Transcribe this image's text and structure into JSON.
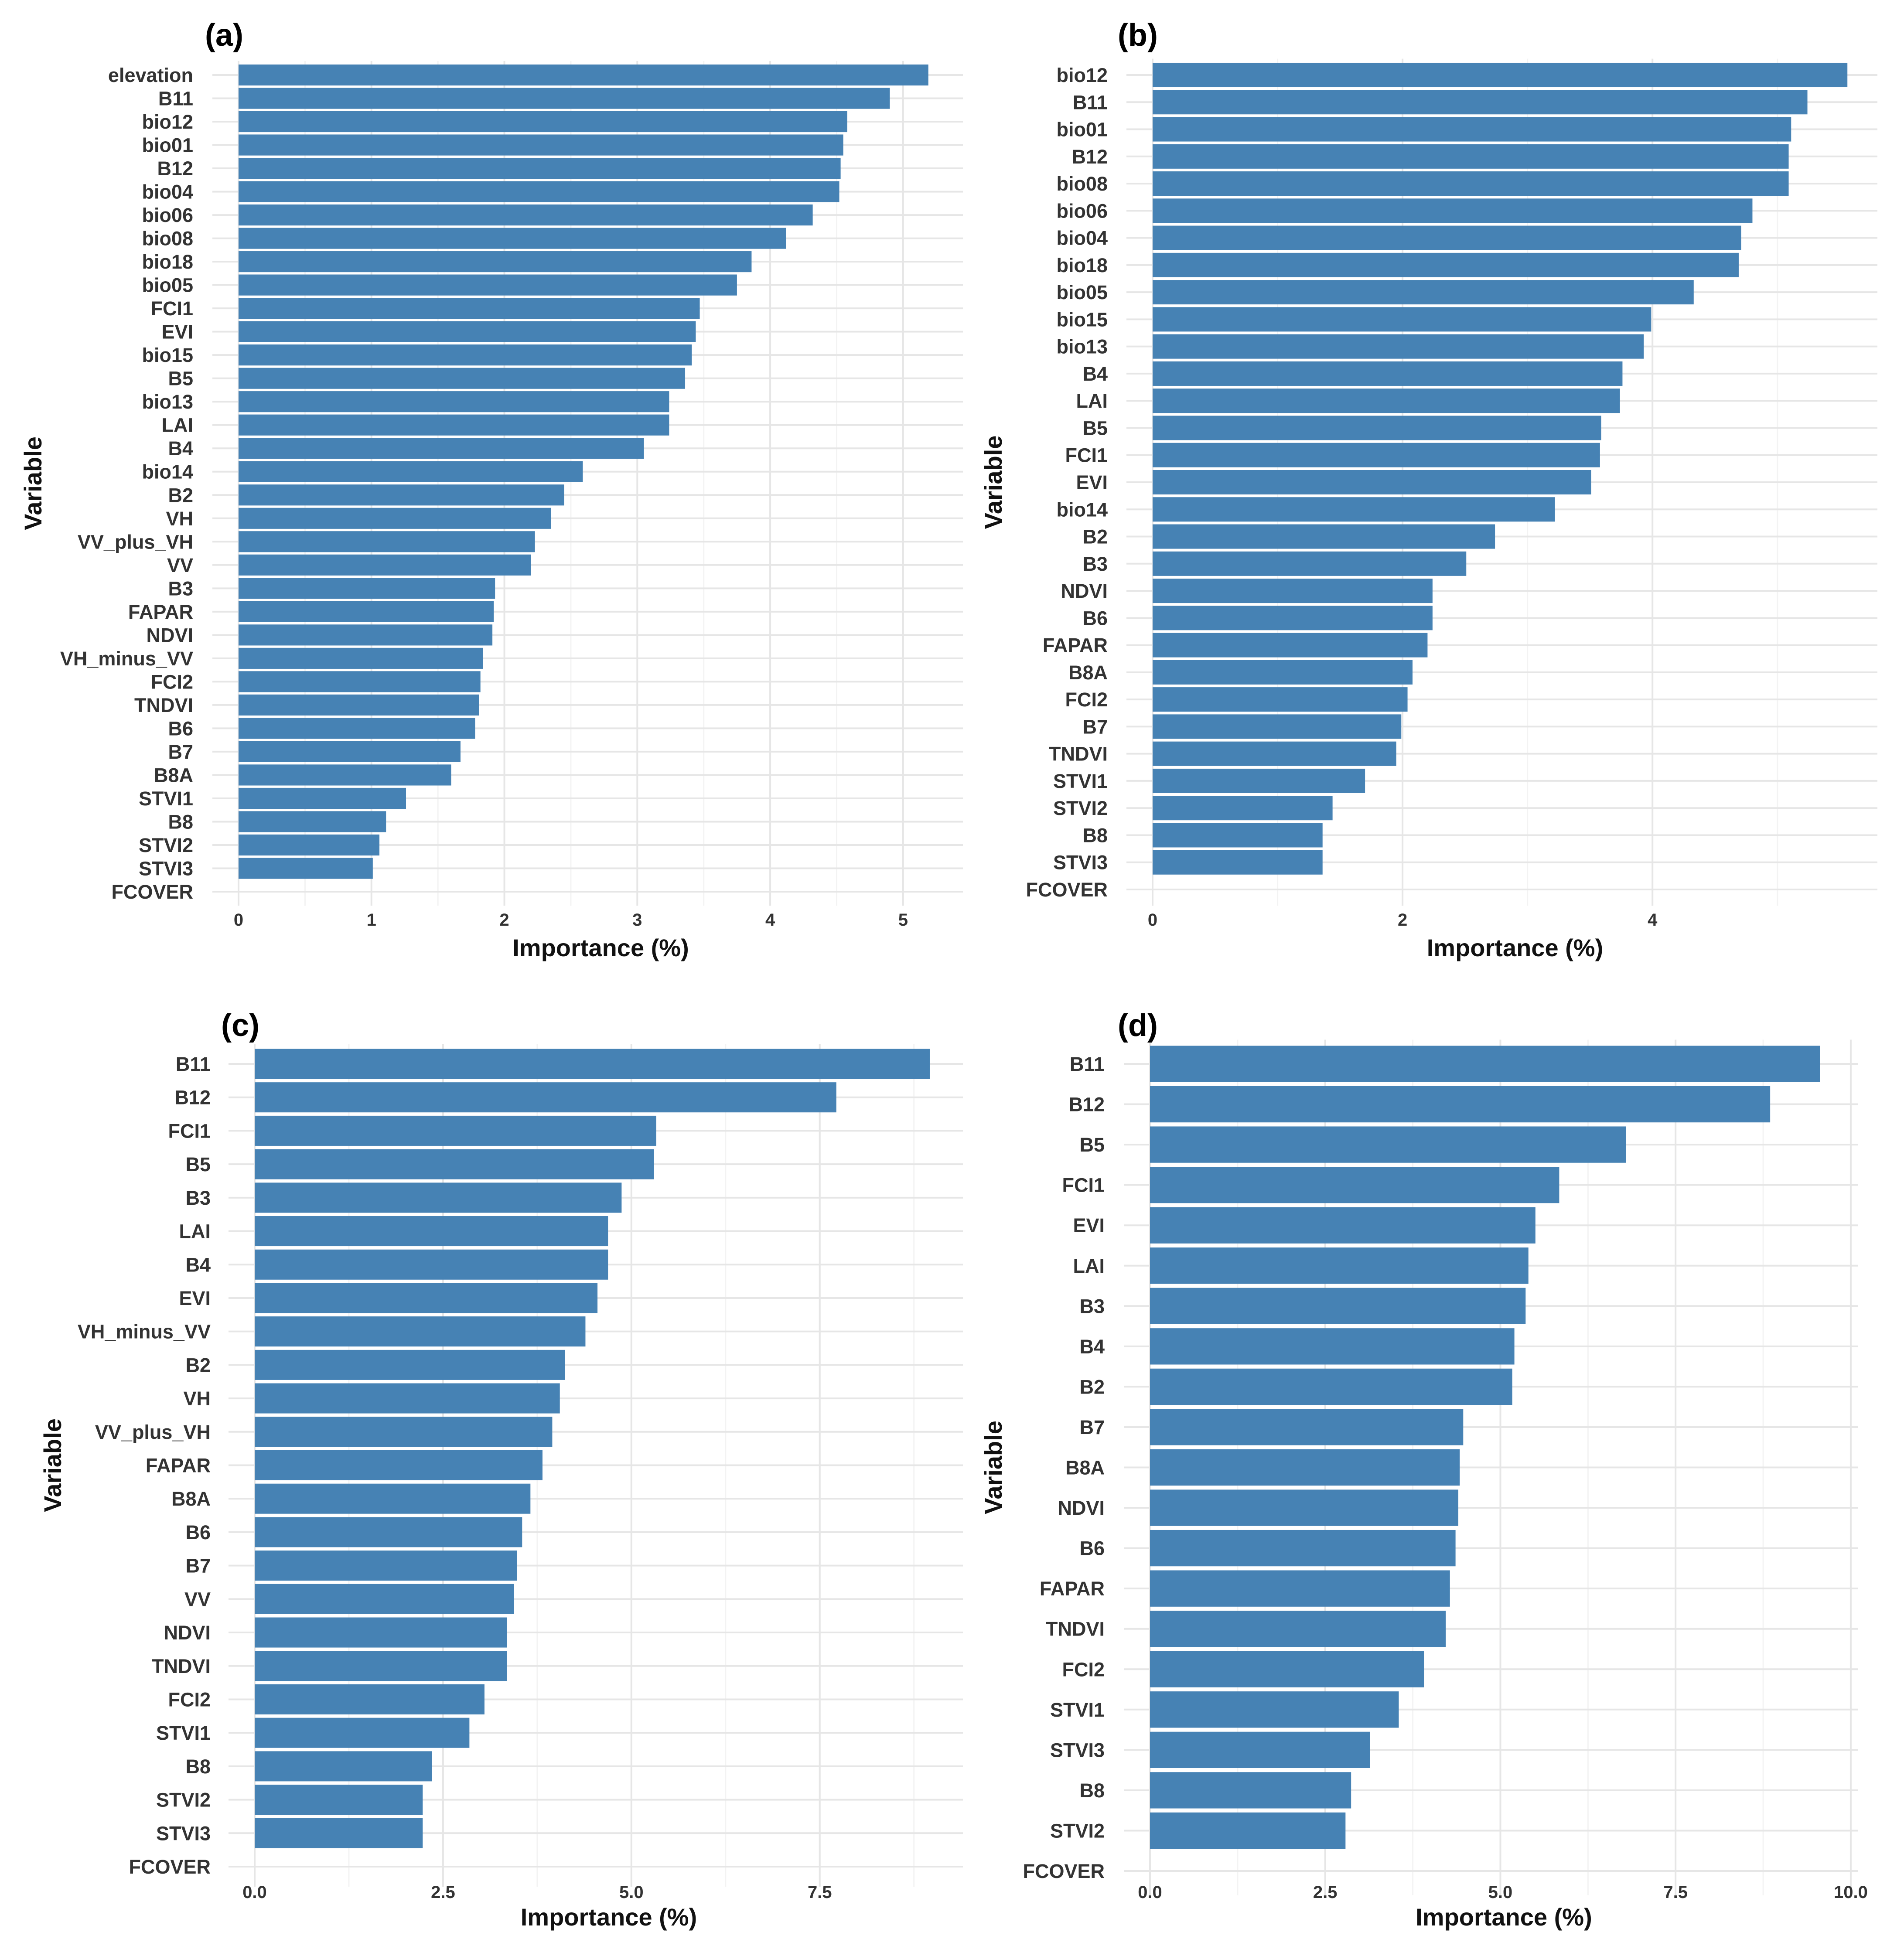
{
  "colors": {
    "bar": "#4682b4",
    "grid_major": "#e6e6e6",
    "grid_minor": "#f3f3f3",
    "background": "#ffffff"
  },
  "chart_data": [
    {
      "type": "bar",
      "panel": "(a)",
      "orientation": "horizontal",
      "xlabel": "Importance (%)",
      "ylabel": "Variable",
      "xlim": [
        0,
        5.45
      ],
      "xticks": [
        0,
        1,
        2,
        3,
        4,
        5
      ],
      "xtick_labels": [
        "0",
        "1",
        "2",
        "3",
        "4",
        "5"
      ],
      "grid": true,
      "categories": [
        "elevation",
        "B11",
        "bio12",
        "bio01",
        "B12",
        "bio04",
        "bio06",
        "bio08",
        "bio18",
        "bio05",
        "FCI1",
        "EVI",
        "bio15",
        "B5",
        "bio13",
        "LAI",
        "B4",
        "bio14",
        "B2",
        "VH",
        "VV_plus_VH",
        "VV",
        "B3",
        "FAPAR",
        "NDVI",
        "VH_minus_VV",
        "FCI2",
        "TNDVI",
        "B6",
        "B7",
        "B8A",
        "STVI1",
        "B8",
        "STVI2",
        "STVI3",
        "FCOVER"
      ],
      "values": [
        5.19,
        4.9,
        4.58,
        4.55,
        4.53,
        4.52,
        4.32,
        4.12,
        3.86,
        3.75,
        3.47,
        3.44,
        3.41,
        3.36,
        3.24,
        3.24,
        3.05,
        2.59,
        2.45,
        2.35,
        2.23,
        2.2,
        1.93,
        1.92,
        1.91,
        1.84,
        1.82,
        1.81,
        1.78,
        1.67,
        1.6,
        1.26,
        1.11,
        1.06,
        1.01,
        0
      ]
    },
    {
      "type": "bar",
      "panel": "(b)",
      "orientation": "horizontal",
      "xlabel": "Importance (%)",
      "ylabel": "Variable",
      "xlim": [
        0,
        5.8
      ],
      "xticks": [
        0,
        2,
        4
      ],
      "xtick_labels": [
        "0",
        "2",
        "4"
      ],
      "grid": true,
      "categories": [
        "bio12",
        "B11",
        "bio01",
        "B12",
        "bio08",
        "bio06",
        "bio04",
        "bio18",
        "bio05",
        "bio15",
        "bio13",
        "B4",
        "LAI",
        "B5",
        "FCI1",
        "EVI",
        "bio14",
        "B2",
        "B3",
        "NDVI",
        "B6",
        "FAPAR",
        "B8A",
        "FCI2",
        "B7",
        "TNDVI",
        "STVI1",
        "STVI2",
        "B8",
        "STVI3",
        "FCOVER"
      ],
      "values": [
        5.56,
        5.24,
        5.11,
        5.09,
        5.09,
        4.8,
        4.71,
        4.69,
        4.33,
        3.99,
        3.93,
        3.76,
        3.74,
        3.59,
        3.58,
        3.51,
        3.22,
        2.74,
        2.51,
        2.24,
        2.24,
        2.2,
        2.08,
        2.04,
        1.99,
        1.95,
        1.7,
        1.44,
        1.36,
        1.36,
        0
      ]
    },
    {
      "type": "bar",
      "panel": "(c)",
      "orientation": "horizontal",
      "xlabel": "Importance (%)",
      "ylabel": "Variable",
      "xlim": [
        0,
        9.4
      ],
      "xticks": [
        0,
        2.5,
        5,
        7.5
      ],
      "xtick_labels": [
        "0.0",
        "2.5",
        "5.0",
        "7.5"
      ],
      "grid": true,
      "categories": [
        "B11",
        "B12",
        "FCI1",
        "B5",
        "B3",
        "LAI",
        "B4",
        "EVI",
        "VH_minus_VV",
        "B2",
        "VH",
        "VV_plus_VH",
        "FAPAR",
        "B8A",
        "B6",
        "B7",
        "VV",
        "NDVI",
        "TNDVI",
        "FCI2",
        "STVI1",
        "B8",
        "STVI2",
        "STVI3",
        "FCOVER"
      ],
      "values": [
        8.96,
        7.72,
        5.33,
        5.3,
        4.87,
        4.69,
        4.69,
        4.55,
        4.39,
        4.12,
        4.05,
        3.95,
        3.82,
        3.66,
        3.55,
        3.48,
        3.44,
        3.35,
        3.35,
        3.05,
        2.85,
        2.35,
        2.23,
        2.23,
        0
      ]
    },
    {
      "type": "bar",
      "panel": "(d)",
      "orientation": "horizontal",
      "xlabel": "Importance (%)",
      "ylabel": "Variable",
      "xlim": [
        0,
        10.1
      ],
      "xticks": [
        0,
        2.5,
        5,
        7.5,
        10
      ],
      "xtick_labels": [
        "0.0",
        "2.5",
        "5.0",
        "7.5",
        "10.0"
      ],
      "grid": true,
      "categories": [
        "B11",
        "B12",
        "B5",
        "FCI1",
        "EVI",
        "LAI",
        "B3",
        "B4",
        "B2",
        "B7",
        "B8A",
        "NDVI",
        "B6",
        "FAPAR",
        "TNDVI",
        "FCI2",
        "STVI1",
        "STVI3",
        "B8",
        "STVI2",
        "FCOVER"
      ],
      "values": [
        9.56,
        8.85,
        6.79,
        5.84,
        5.5,
        5.4,
        5.36,
        5.2,
        5.17,
        4.47,
        4.42,
        4.4,
        4.36,
        4.28,
        4.22,
        3.91,
        3.55,
        3.14,
        2.87,
        2.79,
        0
      ]
    }
  ]
}
